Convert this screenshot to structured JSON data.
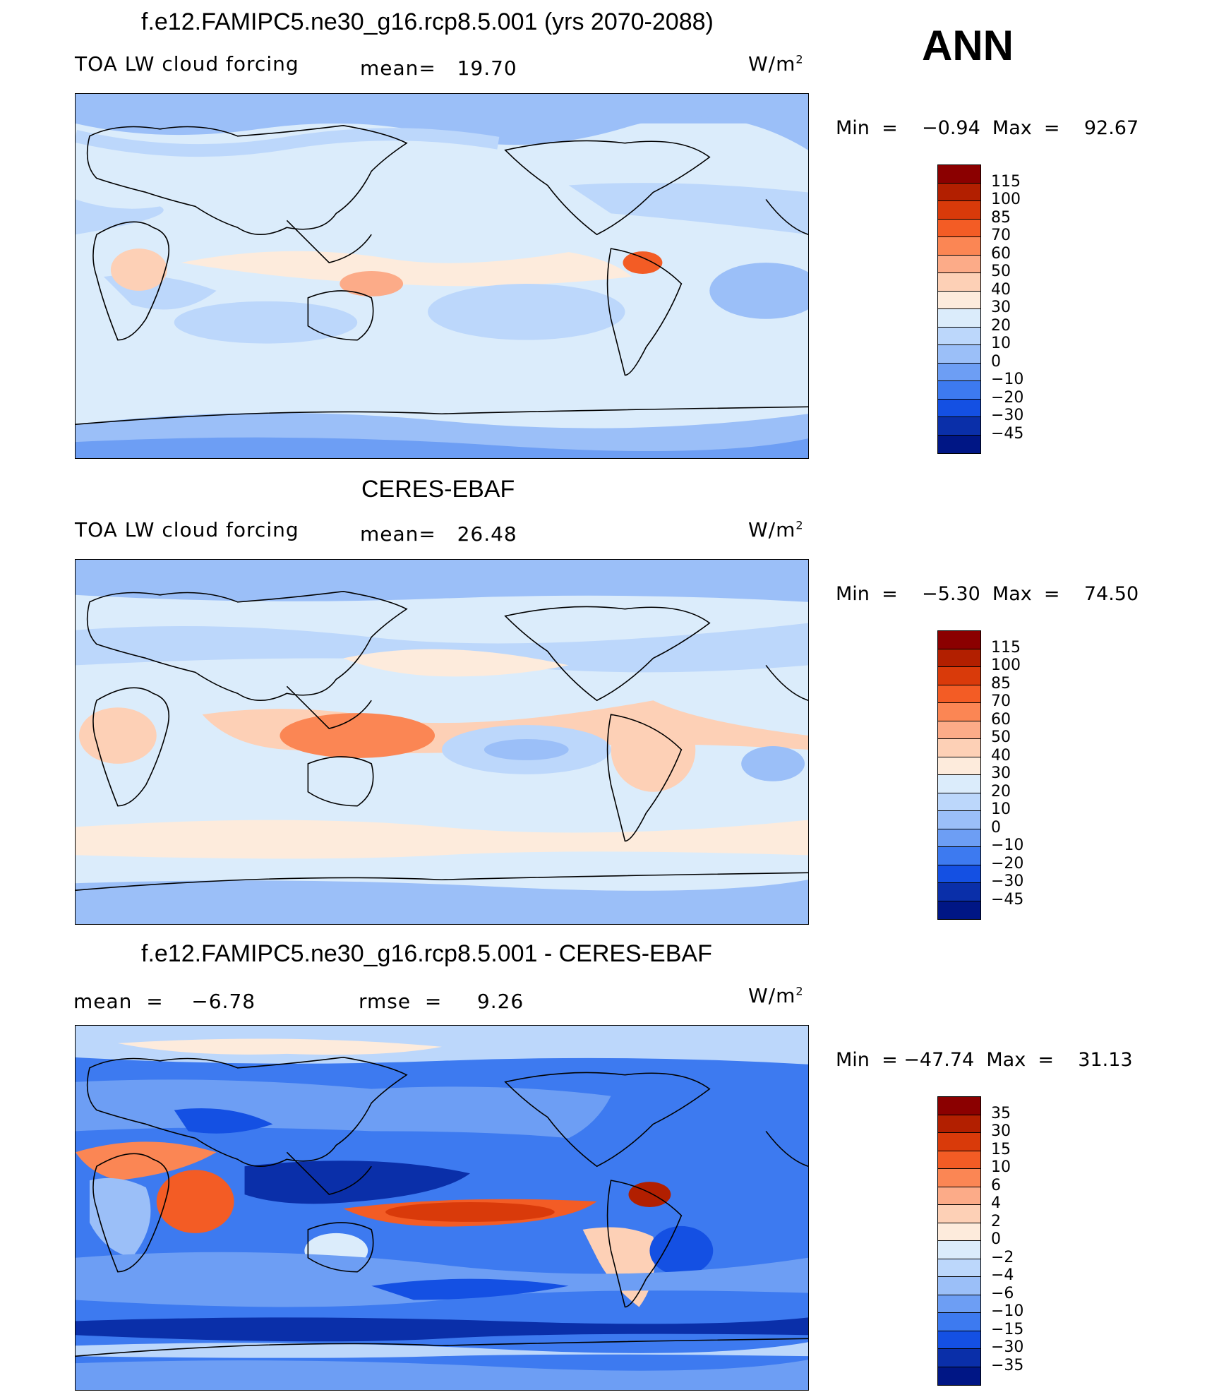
{
  "ann_label": "ANN",
  "units": "W/m",
  "units_exp": "2",
  "panels": [
    {
      "title": "f.e12.FAMIPC5.ne30_g16.rcp8.5.001 (yrs 2070-2088)",
      "left_label": "TOA LW cloud forcing",
      "mid_label": "mean=   19.70",
      "minmax": "Min  =    −0.94  Max  =    92.67",
      "colorbar": {
        "labels": [
          "115",
          "100",
          "85",
          "70",
          "60",
          "50",
          "40",
          "30",
          "20",
          "10",
          "0",
          "−10",
          "−20",
          "−30",
          "−45"
        ],
        "colors": [
          "#8b0000",
          "#b21f00",
          "#d93a0a",
          "#f35c25",
          "#fb8654",
          "#fcab88",
          "#fdd0b6",
          "#fdebdc",
          "#dbecfb",
          "#bcd7fb",
          "#9bbff8",
          "#6d9ef4",
          "#3d7af0",
          "#1450e3",
          "#0a2fa9",
          "#001685"
        ]
      }
    },
    {
      "title": "CERES-EBAF",
      "left_label": "TOA LW cloud forcing",
      "mid_label": "mean=   26.48",
      "minmax": "Min  =    −5.30  Max  =    74.50",
      "colorbar": {
        "labels": [
          "115",
          "100",
          "85",
          "70",
          "60",
          "50",
          "40",
          "30",
          "20",
          "10",
          "0",
          "−10",
          "−20",
          "−30",
          "−45"
        ],
        "colors": [
          "#8b0000",
          "#b21f00",
          "#d93a0a",
          "#f35c25",
          "#fb8654",
          "#fcab88",
          "#fdd0b6",
          "#fdebdc",
          "#dbecfb",
          "#bcd7fb",
          "#9bbff8",
          "#6d9ef4",
          "#3d7af0",
          "#1450e3",
          "#0a2fa9",
          "#001685"
        ]
      }
    },
    {
      "title": "f.e12.FAMIPC5.ne30_g16.rcp8.5.001 - CERES-EBAF",
      "left_label": "mean  =    −6.78",
      "mid_label": "rmse  =     9.26",
      "minmax": "Min  = −47.74  Max  =    31.13",
      "colorbar": {
        "labels": [
          "35",
          "30",
          "15",
          "10",
          "6",
          "4",
          "2",
          "0",
          "−2",
          "−4",
          "−6",
          "−10",
          "−15",
          "−30",
          "−35"
        ],
        "colors": [
          "#8b0000",
          "#b21f00",
          "#d93a0a",
          "#f35c25",
          "#fb8654",
          "#fcab88",
          "#fdd0b6",
          "#fdebdc",
          "#dbecfb",
          "#bcd7fb",
          "#9bbff8",
          "#6d9ef4",
          "#3d7af0",
          "#1450e3",
          "#0a2fa9",
          "#001685"
        ]
      }
    }
  ]
}
